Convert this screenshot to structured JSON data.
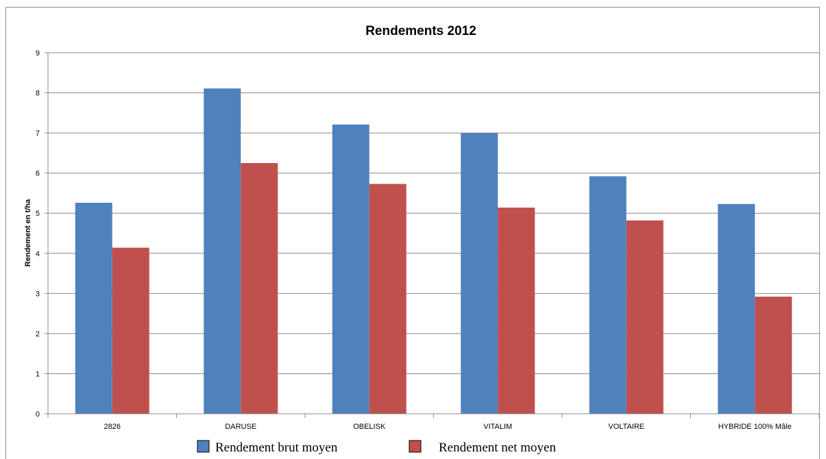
{
  "chart_data": {
    "type": "bar",
    "title": "Rendements 2012",
    "xlabel": "",
    "ylabel": "Rendement en t/ha",
    "ylim": [
      0,
      9
    ],
    "yticks": [
      "0",
      "1",
      "2",
      "3",
      "4",
      "5",
      "6",
      "7",
      "8",
      "9"
    ],
    "grid": true,
    "legend_position": "bottom",
    "categories": [
      "2826",
      "DARUSE",
      "OBELISK",
      "VITALIM",
      "VOLTAIRE",
      "HYBRIDE 100% Mâle"
    ],
    "series": [
      {
        "name": "Rendement brut moyen",
        "color": "#4f81bd",
        "values": [
          5.26,
          8.11,
          7.21,
          7.0,
          5.92,
          5.23
        ]
      },
      {
        "name": "Rendement net moyen",
        "color": "#c0504d",
        "values": [
          4.14,
          6.25,
          5.73,
          5.14,
          4.82,
          2.92
        ]
      }
    ]
  }
}
